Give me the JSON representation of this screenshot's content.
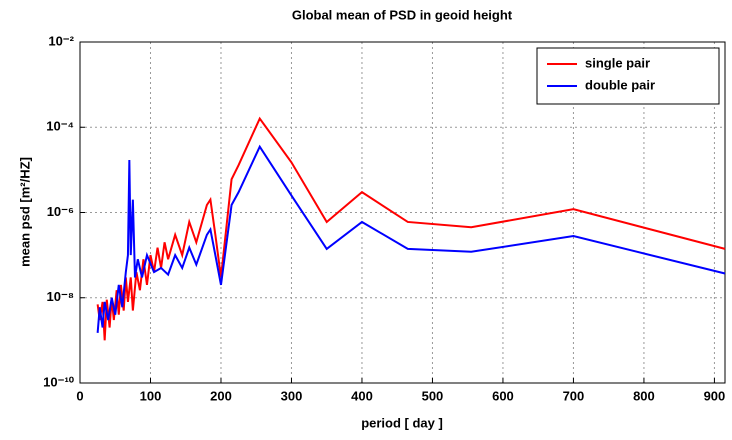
{
  "chart_data": {
    "type": "line",
    "title": "Global mean of PSD in geoid height",
    "x_label": "period [ day ]",
    "y_label": "mean psd [m²/HZ]",
    "xlim": [
      0,
      915
    ],
    "xticks": [
      0,
      100,
      200,
      300,
      400,
      500,
      600,
      700,
      800,
      900
    ],
    "ylim": [
      1e-10,
      0.01
    ],
    "log_y": true,
    "yticks": [
      {
        "value": 1e-10,
        "label": "10⁻¹⁰"
      },
      {
        "value": 1e-08,
        "label": "10⁻⁸"
      },
      {
        "value": 1e-06,
        "label": "10⁻⁶"
      },
      {
        "value": 0.0001,
        "label": "10⁻⁴"
      },
      {
        "value": 0.01,
        "label": "10⁻²"
      }
    ],
    "grid": true,
    "legend": "upper right",
    "series": [
      {
        "name": "single pair",
        "color": "#ff0000",
        "x": [
          25,
          28,
          32,
          35,
          38,
          42,
          45,
          48,
          52,
          55,
          58,
          62,
          65,
          68,
          72,
          75,
          80,
          85,
          90,
          95,
          100,
          105,
          110,
          115,
          120,
          125,
          135,
          145,
          155,
          165,
          180,
          185,
          192,
          200,
          215,
          225,
          255,
          300,
          350,
          400,
          465,
          555,
          700,
          915
        ],
        "values": [
          7e-09,
          3e-09,
          8e-09,
          1e-09,
          9e-09,
          2e-09,
          1e-08,
          3e-09,
          1.5e-08,
          4e-09,
          2e-08,
          5e-09,
          3e-08,
          8e-09,
          3e-08,
          5e-09,
          4e-08,
          1.5e-08,
          8e-08,
          2e-08,
          1e-07,
          4e-08,
          1.5e-07,
          5e-08,
          2e-07,
          8e-08,
          3e-07,
          1e-07,
          6e-07,
          2e-07,
          1.5e-06,
          2e-06,
          3e-07,
          3e-08,
          6e-06,
          1.3e-05,
          0.00016,
          1.5e-05,
          6e-07,
          3e-06,
          6e-07,
          4.5e-07,
          1.2e-06,
          1.4e-07
        ]
      },
      {
        "name": "double pair",
        "color": "#0000ff",
        "x": [
          25,
          28,
          32,
          35,
          40,
          45,
          50,
          55,
          60,
          65,
          68,
          70,
          72,
          75,
          78,
          82,
          88,
          95,
          105,
          115,
          125,
          135,
          145,
          155,
          165,
          180,
          185,
          192,
          200,
          215,
          225,
          255,
          300,
          350,
          400,
          465,
          555,
          700,
          915
        ],
        "values": [
          1.5e-09,
          6e-09,
          2e-09,
          8e-09,
          3e-09,
          1e-08,
          4e-09,
          2e-08,
          6e-09,
          4e-08,
          1e-07,
          1.7e-05,
          1e-07,
          2e-06,
          3e-08,
          8e-08,
          3e-08,
          1e-07,
          4e-08,
          5e-08,
          3.5e-08,
          1e-07,
          5e-08,
          1.5e-07,
          6e-08,
          3e-07,
          4e-07,
          1e-07,
          2e-08,
          1.5e-06,
          3e-06,
          3.5e-05,
          2.5e-06,
          1.4e-07,
          6e-07,
          1.4e-07,
          1.2e-07,
          2.8e-07,
          3.7e-08
        ]
      }
    ]
  }
}
